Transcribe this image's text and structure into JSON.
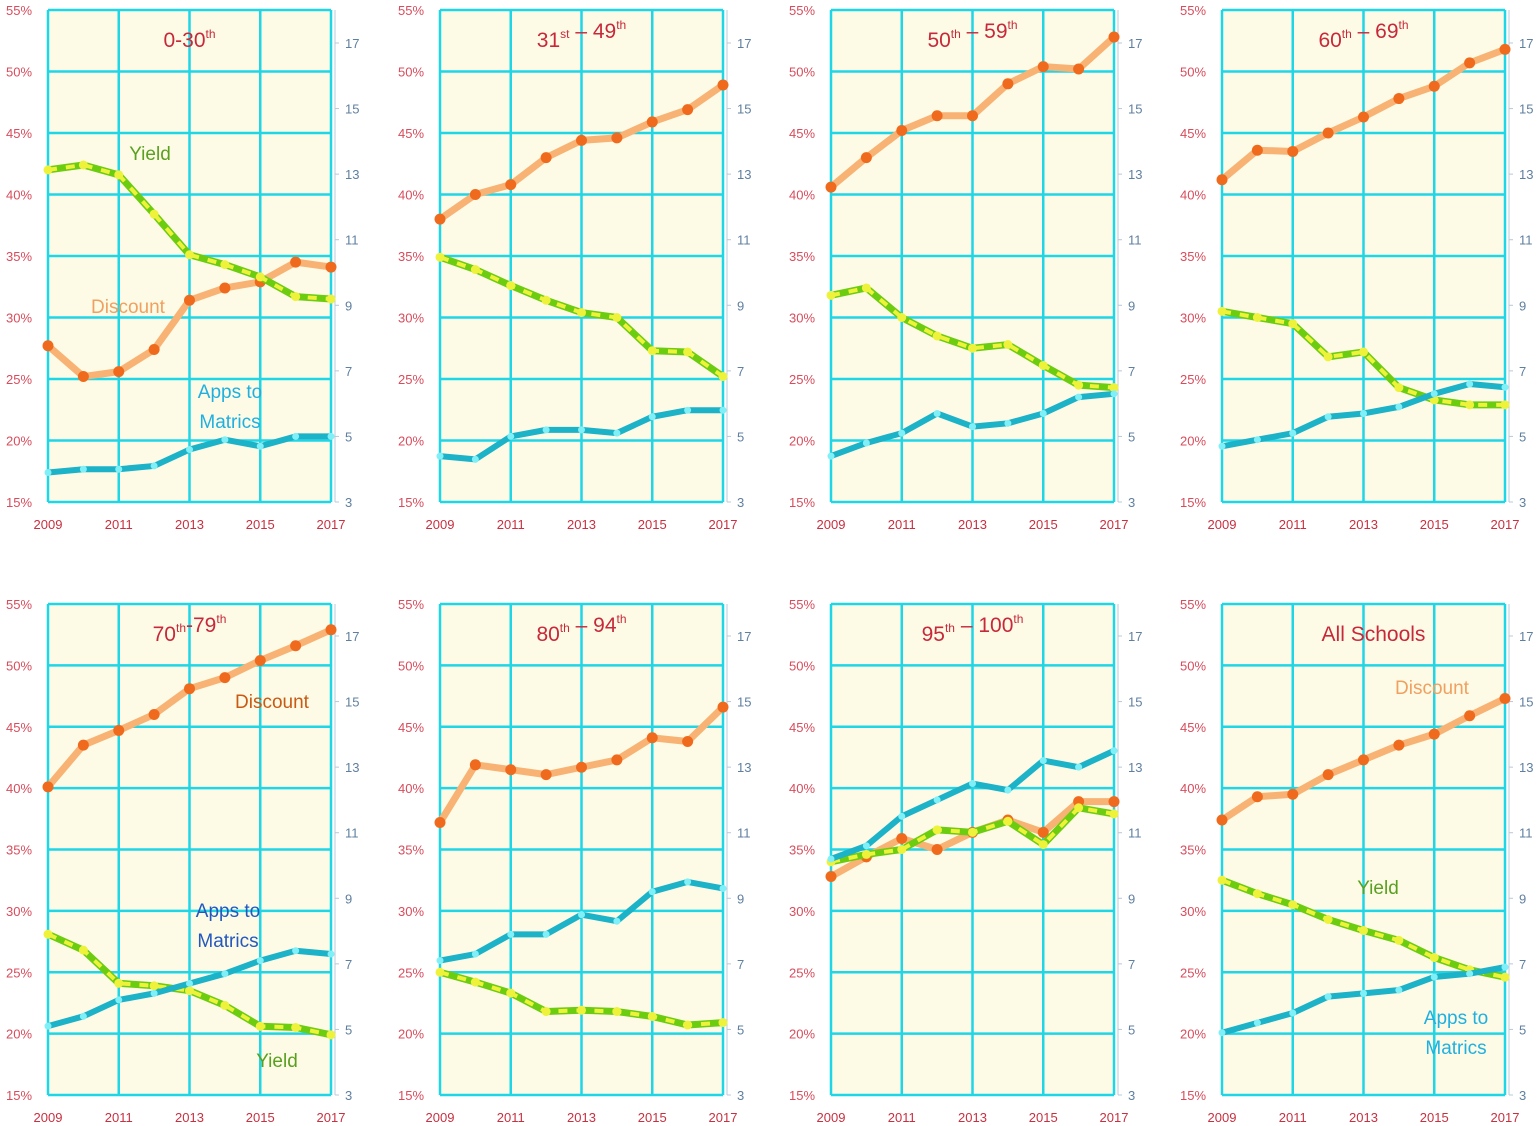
{
  "chart_data": [
    {
      "type": "line",
      "title_parts": [
        {
          "t": "0-30",
          "s": "th"
        }
      ],
      "x": [
        2009,
        2010,
        2011,
        2012,
        2013,
        2014,
        2015,
        2016,
        2017
      ],
      "series": [
        {
          "name": "Discount",
          "axis": "left",
          "values": [
            27.7,
            25.2,
            25.6,
            27.4,
            31.4,
            32.4,
            32.9,
            34.5,
            34.1
          ]
        },
        {
          "name": "Yield",
          "axis": "left",
          "values": [
            42.0,
            42.4,
            41.6,
            38.4,
            35.1,
            34.3,
            33.3,
            31.7,
            31.5
          ]
        },
        {
          "name": "Apps to Matrics",
          "axis": "right",
          "values": [
            3.9,
            4.0,
            4.0,
            4.1,
            4.6,
            4.9,
            4.7,
            5.0,
            5.0
          ]
        }
      ],
      "labels": [
        {
          "series": "Yield",
          "text": "Yield"
        },
        {
          "series": "Discount",
          "text": "Discount"
        },
        {
          "series": "Apps to Matrics",
          "lines": [
            "Apps to",
            "Matrics"
          ]
        }
      ]
    },
    {
      "type": "line",
      "title_parts": [
        {
          "t": "31",
          "s": "st"
        },
        {
          "t": " – 49",
          "s": "th"
        }
      ],
      "x": [
        2009,
        2010,
        2011,
        2012,
        2013,
        2014,
        2015,
        2016,
        2017
      ],
      "series": [
        {
          "name": "Discount",
          "axis": "left",
          "values": [
            38.0,
            40.0,
            40.8,
            43.0,
            44.4,
            44.6,
            45.9,
            46.9,
            48.9
          ]
        },
        {
          "name": "Yield",
          "axis": "left",
          "values": [
            34.9,
            33.9,
            32.6,
            31.4,
            30.4,
            30.0,
            27.3,
            27.2,
            25.2
          ]
        },
        {
          "name": "Apps to Matrics",
          "axis": "right",
          "values": [
            4.4,
            4.3,
            5.0,
            5.2,
            5.2,
            5.1,
            5.6,
            5.8,
            5.8
          ]
        }
      ],
      "labels": []
    },
    {
      "type": "line",
      "title_parts": [
        {
          "t": "50",
          "s": "th"
        },
        {
          "t": " – 59",
          "s": "th"
        }
      ],
      "x": [
        2009,
        2010,
        2011,
        2012,
        2013,
        2014,
        2015,
        2016,
        2017
      ],
      "series": [
        {
          "name": "Discount",
          "axis": "left",
          "values": [
            40.6,
            43.0,
            45.2,
            46.4,
            46.4,
            49.0,
            50.4,
            50.2,
            52.8
          ]
        },
        {
          "name": "Yield",
          "axis": "left",
          "values": [
            31.8,
            32.4,
            30.0,
            28.5,
            27.5,
            27.8,
            26.1,
            24.5,
            24.3
          ]
        },
        {
          "name": "Apps to Matrics",
          "axis": "right",
          "values": [
            4.4,
            4.8,
            5.1,
            5.7,
            5.3,
            5.4,
            5.7,
            6.2,
            6.3
          ]
        }
      ],
      "labels": []
    },
    {
      "type": "line",
      "title_parts": [
        {
          "t": "60",
          "s": "th"
        },
        {
          "t": " – 69",
          "s": "th"
        }
      ],
      "x": [
        2009,
        2010,
        2011,
        2012,
        2013,
        2014,
        2015,
        2016,
        2017
      ],
      "series": [
        {
          "name": "Discount",
          "axis": "left",
          "values": [
            41.2,
            43.6,
            43.5,
            45.0,
            46.3,
            47.8,
            48.8,
            50.7,
            51.8
          ]
        },
        {
          "name": "Yield",
          "axis": "left",
          "values": [
            30.5,
            30.0,
            29.5,
            26.8,
            27.2,
            24.3,
            23.3,
            22.9,
            22.9
          ]
        },
        {
          "name": "Apps to Matrics",
          "axis": "right",
          "values": [
            4.7,
            4.9,
            5.1,
            5.6,
            5.7,
            5.9,
            6.3,
            6.6,
            6.5
          ]
        }
      ],
      "labels": []
    },
    {
      "type": "line",
      "title_parts": [
        {
          "t": "70",
          "s": "th"
        },
        {
          "t": "-79",
          "s": "th"
        }
      ],
      "x": [
        2009,
        2010,
        2011,
        2012,
        2013,
        2014,
        2015,
        2016,
        2017
      ],
      "series": [
        {
          "name": "Discount",
          "axis": "left",
          "values": [
            40.1,
            43.5,
            44.7,
            46.0,
            48.1,
            49.0,
            50.4,
            51.6,
            52.9
          ]
        },
        {
          "name": "Yield",
          "axis": "left",
          "values": [
            28.1,
            26.8,
            24.1,
            23.9,
            23.5,
            22.3,
            20.6,
            20.5,
            19.9
          ]
        },
        {
          "name": "Apps to Matrics",
          "axis": "right",
          "values": [
            5.1,
            5.4,
            5.9,
            6.1,
            6.4,
            6.7,
            7.1,
            7.4,
            7.3
          ]
        }
      ],
      "labels": [
        {
          "series": "Discount",
          "text": "Discount"
        },
        {
          "series": "Apps to Matrics",
          "lines": [
            "Apps to",
            "Matrics"
          ]
        },
        {
          "series": "Yield",
          "text": "Yield"
        }
      ]
    },
    {
      "type": "line",
      "title_parts": [
        {
          "t": "80",
          "s": "th"
        },
        {
          "t": " – 94",
          "s": "th"
        }
      ],
      "x": [
        2009,
        2010,
        2011,
        2012,
        2013,
        2014,
        2015,
        2016,
        2017
      ],
      "series": [
        {
          "name": "Discount",
          "axis": "left",
          "values": [
            37.2,
            41.9,
            41.5,
            41.1,
            41.7,
            42.3,
            44.1,
            43.8,
            46.6
          ]
        },
        {
          "name": "Yield",
          "axis": "left",
          "values": [
            25.0,
            24.2,
            23.3,
            21.8,
            21.9,
            21.8,
            21.4,
            20.7,
            20.9
          ]
        },
        {
          "name": "Apps to Matrics",
          "axis": "right",
          "values": [
            7.1,
            7.3,
            7.9,
            7.9,
            8.5,
            8.3,
            9.2,
            9.5,
            9.3
          ]
        }
      ],
      "labels": []
    },
    {
      "type": "line",
      "title_parts": [
        {
          "t": "95",
          "s": "th"
        },
        {
          "t": " – 100",
          "s": "th"
        }
      ],
      "x": [
        2009,
        2010,
        2011,
        2012,
        2013,
        2014,
        2015,
        2016,
        2017
      ],
      "series": [
        {
          "name": "Discount",
          "axis": "left",
          "values": [
            32.8,
            34.4,
            35.9,
            35.0,
            36.4,
            37.4,
            36.4,
            38.9,
            38.9
          ]
        },
        {
          "name": "Yield",
          "axis": "left",
          "values": [
            34.0,
            34.6,
            35.0,
            36.6,
            36.4,
            37.3,
            35.4,
            38.4,
            37.9
          ]
        },
        {
          "name": "Apps to Matrics",
          "axis": "right",
          "values": [
            10.2,
            10.6,
            11.5,
            12.0,
            12.5,
            12.3,
            13.2,
            13.0,
            13.5
          ]
        }
      ],
      "labels": []
    },
    {
      "type": "line",
      "title_parts": [
        {
          "t": "All Schools",
          "s": ""
        }
      ],
      "x": [
        2009,
        2010,
        2011,
        2012,
        2013,
        2014,
        2015,
        2016,
        2017
      ],
      "series": [
        {
          "name": "Discount",
          "axis": "left",
          "values": [
            37.4,
            39.3,
            39.5,
            41.1,
            42.3,
            43.5,
            44.4,
            45.9,
            47.3
          ]
        },
        {
          "name": "Yield",
          "axis": "left",
          "values": [
            32.5,
            31.4,
            30.5,
            29.3,
            28.4,
            27.6,
            26.2,
            25.2,
            24.6
          ]
        },
        {
          "name": "Apps to Matrics",
          "axis": "right",
          "values": [
            4.9,
            5.2,
            5.5,
            6.0,
            6.1,
            6.2,
            6.6,
            6.7,
            6.9
          ]
        }
      ],
      "labels": [
        {
          "series": "Discount",
          "text": "Discount"
        },
        {
          "series": "Yield",
          "text": "Yield"
        },
        {
          "series": "Apps to Matrics",
          "lines": [
            "Apps to",
            "Matrics"
          ]
        }
      ]
    }
  ],
  "axes": {
    "y_left": {
      "range": [
        15,
        55
      ],
      "ticks": [
        "15%",
        "20%",
        "25%",
        "30%",
        "35%",
        "40%",
        "45%",
        "50%",
        "55%"
      ]
    },
    "y_right": {
      "range": [
        3,
        17
      ],
      "ticks": [
        "3",
        "5",
        "7",
        "9",
        "11",
        "13",
        "15",
        "17"
      ]
    },
    "x": {
      "range": [
        2009,
        2017
      ],
      "ticks": [
        "2009",
        "2011",
        "2013",
        "2015",
        "2017"
      ]
    },
    "grid": true
  },
  "colors": {
    "grid": "#1ed6e6",
    "plot_bg": "#fdfbe6",
    "discount_line": "#f8b274",
    "discount_marker": "#f06a1e",
    "discount_label": "#f0a060",
    "yield_line": "#6ccc10",
    "yield_dash": "#eef23a",
    "yield_label": "#5aa020",
    "apps_line": "#1cb2c8",
    "apps_marker": "#7ff0f8",
    "apps_label": "#20b0e0",
    "title": "#c8283a"
  }
}
